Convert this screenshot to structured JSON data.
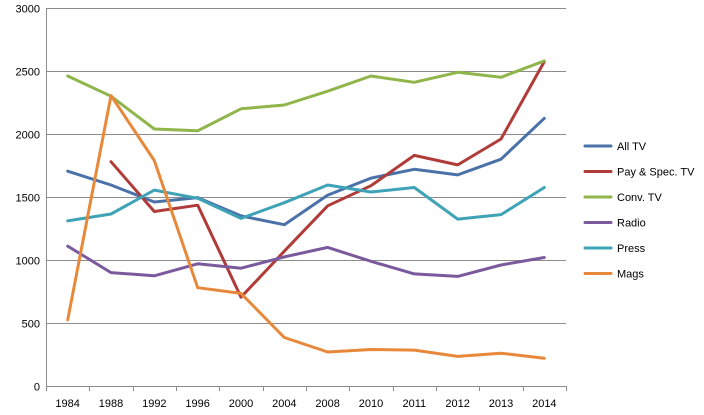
{
  "chart_data": {
    "type": "line",
    "title": "",
    "xlabel": "",
    "ylabel": "",
    "categories": [
      "1984",
      "1988",
      "1992",
      "1996",
      "2000",
      "2004",
      "2008",
      "2010",
      "2011",
      "2012",
      "2013",
      "2014"
    ],
    "ylim": [
      0,
      3000
    ],
    "yticks": [
      0,
      500,
      1000,
      1500,
      2000,
      2500,
      3000
    ],
    "grid": "horizontal",
    "legend_position": "right",
    "series": [
      {
        "name": "All TV",
        "color": "#4a72a8",
        "values": [
          1705,
          1595,
          1460,
          1495,
          1350,
          1280,
          1515,
          1650,
          1720,
          1675,
          1800,
          2125
        ]
      },
      {
        "name": "Pay & Spec. TV",
        "color": "#b03c3a",
        "values": [
          null,
          1780,
          1385,
          1435,
          705,
          1070,
          1430,
          1590,
          1830,
          1755,
          1960,
          2575
        ]
      },
      {
        "name": "Conv. TV",
        "color": "#8fb54b",
        "values": [
          2460,
          2300,
          2040,
          2025,
          2200,
          2230,
          2340,
          2460,
          2410,
          2490,
          2450,
          2580
        ]
      },
      {
        "name": "Radio",
        "color": "#7a5a9c",
        "values": [
          1110,
          900,
          875,
          970,
          935,
          1025,
          1100,
          990,
          890,
          870,
          960,
          1020
        ]
      },
      {
        "name": "Press",
        "color": "#3fa3b8",
        "values": [
          1310,
          1365,
          1555,
          1490,
          1330,
          1455,
          1595,
          1540,
          1575,
          1325,
          1360,
          1575
        ]
      },
      {
        "name": "Mags",
        "color": "#e8883a",
        "values": [
          525,
          2305,
          1790,
          780,
          735,
          385,
          270,
          290,
          285,
          235,
          260,
          220
        ]
      }
    ]
  }
}
